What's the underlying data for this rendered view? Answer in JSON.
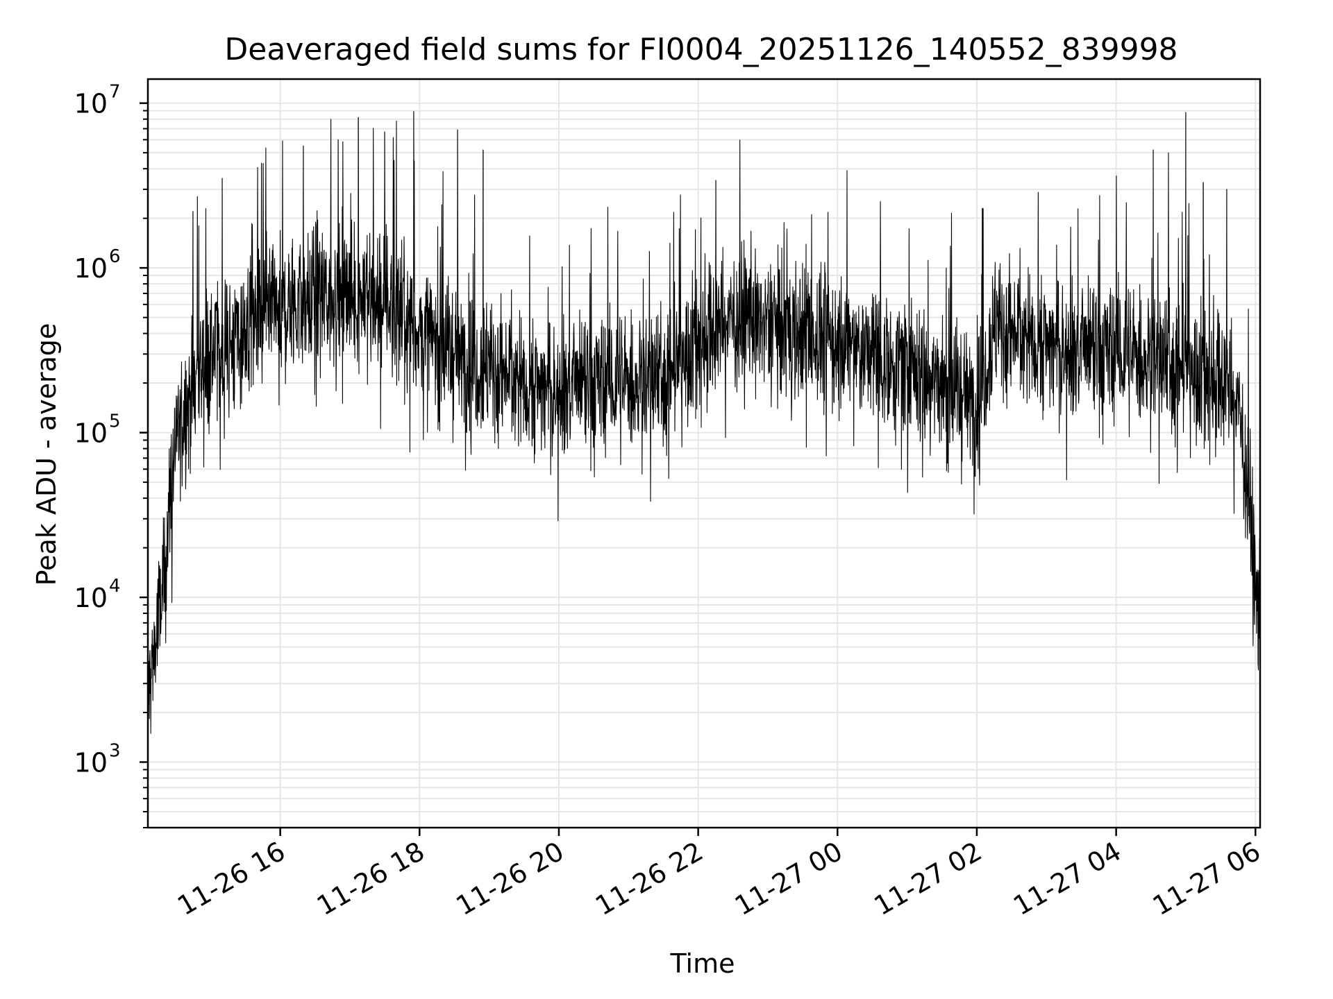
{
  "chart_data": {
    "type": "line",
    "title": "Deaveraged field sums for FI0004_20251126_140552_839998",
    "xlabel": "Time",
    "ylabel": "Peak ADU - average",
    "yscale": "log",
    "ylim": [
      400,
      14000000
    ],
    "xlim": [
      "2025-11-26 14:06",
      "2025-11-27 06:04"
    ],
    "grid": "on, major and minor",
    "legend": "none",
    "line_color": "#000000",
    "x_ticks": [
      {
        "value": "2025-11-26 16:00",
        "label": "11-26 16"
      },
      {
        "value": "2025-11-26 18:00",
        "label": "11-26 18"
      },
      {
        "value": "2025-11-26 20:00",
        "label": "11-26 20"
      },
      {
        "value": "2025-11-26 22:00",
        "label": "11-26 22"
      },
      {
        "value": "2025-11-27 00:00",
        "label": "11-27 00"
      },
      {
        "value": "2025-11-27 02:00",
        "label": "11-27 02"
      },
      {
        "value": "2025-11-27 04:00",
        "label": "11-27 04"
      },
      {
        "value": "2025-11-27 06:00",
        "label": "11-27 06"
      }
    ],
    "y_ticks": [
      {
        "value": 1000,
        "base": "10",
        "exp": "3"
      },
      {
        "value": 10000,
        "base": "10",
        "exp": "4"
      },
      {
        "value": 100000,
        "base": "10",
        "exp": "5"
      },
      {
        "value": 1000000,
        "base": "10",
        "exp": "6"
      },
      {
        "value": 10000000,
        "base": "10",
        "exp": "7"
      }
    ],
    "series": [
      {
        "x": [
          "2025-11-26 14:06",
          "2025-11-26 14:10",
          "2025-11-26 14:15",
          "2025-11-26 14:20",
          "2025-11-26 14:25",
          "2025-11-26 14:30",
          "2025-11-26 14:40",
          "2025-11-26 14:50",
          "2025-11-26 15:00",
          "2025-11-26 15:20",
          "2025-11-26 15:40",
          "2025-11-26 16:00",
          "2025-11-26 16:30",
          "2025-11-26 17:00",
          "2025-11-26 17:30",
          "2025-11-26 18:00",
          "2025-11-26 18:30",
          "2025-11-26 19:00",
          "2025-11-26 19:30",
          "2025-11-26 20:00",
          "2025-11-26 20:30",
          "2025-11-26 21:00",
          "2025-11-26 21:30",
          "2025-11-26 22:00",
          "2025-11-26 22:30",
          "2025-11-26 23:00",
          "2025-11-26 23:30",
          "2025-11-27 00:00",
          "2025-11-27 00:30",
          "2025-11-27 01:00",
          "2025-11-27 01:30",
          "2025-11-27 02:00",
          "2025-11-27 02:15",
          "2025-11-27 02:30",
          "2025-11-27 03:00",
          "2025-11-27 03:30",
          "2025-11-27 04:00",
          "2025-11-27 04:30",
          "2025-11-27 05:00",
          "2025-11-27 05:30",
          "2025-11-27 05:45",
          "2025-11-27 05:55",
          "2025-11-27 06:00",
          "2025-11-27 06:04"
        ],
        "y": [
          2500,
          4000,
          7000,
          12000,
          40000,
          90000,
          150000,
          250000,
          300000,
          350000,
          450000,
          550000,
          650000,
          700000,
          650000,
          400000,
          300000,
          250000,
          200000,
          180000,
          190000,
          200000,
          220000,
          350000,
          500000,
          450000,
          400000,
          350000,
          300000,
          250000,
          200000,
          150000,
          450000,
          400000,
          350000,
          300000,
          300000,
          280000,
          250000,
          200000,
          150000,
          40000,
          10000,
          6000
        ]
      }
    ],
    "spikes": [
      {
        "x": "2025-11-26 14:45",
        "y": 2200000
      },
      {
        "x": "2025-11-26 15:10",
        "y": 3500000
      },
      {
        "x": "2025-11-26 15:45",
        "y": 4300000
      },
      {
        "x": "2025-11-26 16:02",
        "y": 5900000
      },
      {
        "x": "2025-11-26 16:20",
        "y": 5500000
      },
      {
        "x": "2025-11-26 16:50",
        "y": 6000000
      },
      {
        "x": "2025-11-26 17:07",
        "y": 8200000
      },
      {
        "x": "2025-11-26 17:30",
        "y": 6700000
      },
      {
        "x": "2025-11-26 17:40",
        "y": 7800000
      },
      {
        "x": "2025-11-26 17:55",
        "y": 8900000
      },
      {
        "x": "2025-11-26 18:33",
        "y": 6900000
      },
      {
        "x": "2025-11-26 18:55",
        "y": 5200000
      },
      {
        "x": "2025-11-26 22:15",
        "y": 3400000
      },
      {
        "x": "2025-11-27 00:08",
        "y": 3900000
      },
      {
        "x": "2025-11-27 02:05",
        "y": 2300000
      },
      {
        "x": "2025-11-27 04:32",
        "y": 5200000
      },
      {
        "x": "2025-11-27 04:45",
        "y": 5000000
      },
      {
        "x": "2025-11-27 05:00",
        "y": 8800000
      },
      {
        "x": "2025-11-27 05:15",
        "y": 3300000
      },
      {
        "x": "2025-11-27 05:35",
        "y": 3000000
      }
    ]
  }
}
